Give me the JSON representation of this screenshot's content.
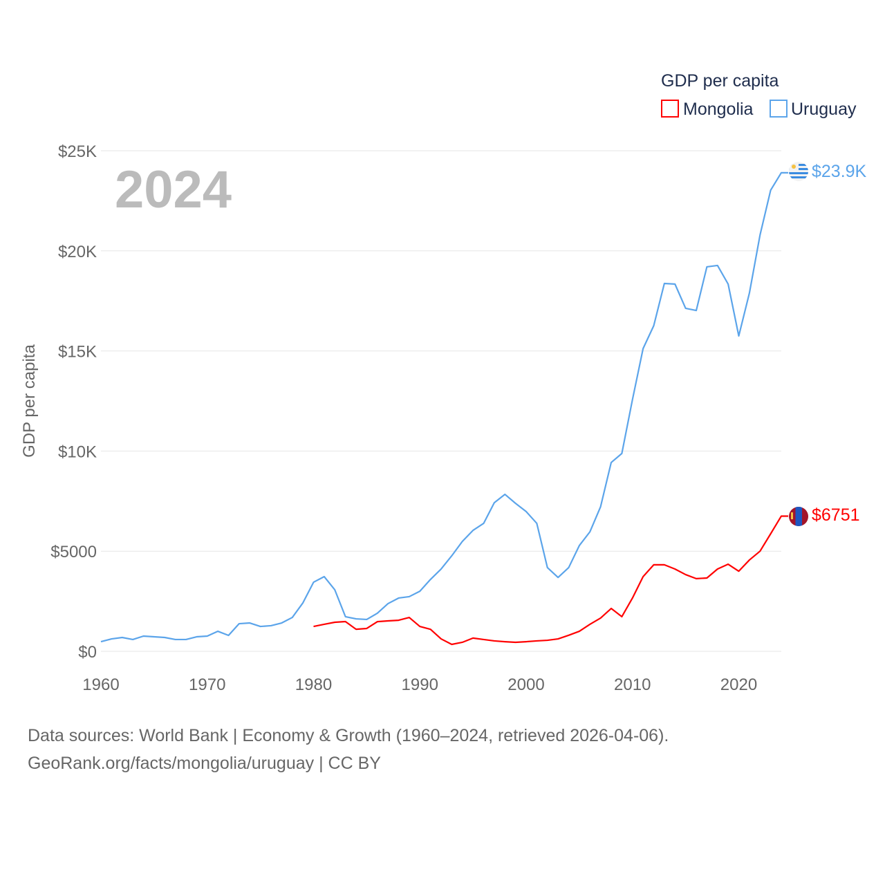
{
  "chart_data": {
    "type": "line",
    "title": "",
    "xlabel": "",
    "ylabel": "GDP per capita",
    "xlim": [
      1960,
      2024
    ],
    "ylim": [
      0,
      25000
    ],
    "grid": true,
    "x_ticks": [
      1960,
      1970,
      1980,
      1990,
      2000,
      2010,
      2020
    ],
    "x_tick_labels": [
      "1960",
      "1970",
      "1980",
      "1990",
      "2000",
      "2010",
      "2020"
    ],
    "y_ticks": [
      0,
      5000,
      10000,
      15000,
      20000,
      25000
    ],
    "y_tick_labels": [
      "$0",
      "$5000",
      "$10K",
      "$15K",
      "$20K",
      "$25K"
    ],
    "year_label": "2024",
    "legend": {
      "title": "GDP per capita",
      "placement": "top-right"
    },
    "series": [
      {
        "name": "Mongolia",
        "color": "#ff0000",
        "start_year": 1980,
        "end_label": "$6751",
        "flag": "mongolia-flag",
        "values": [
          1240,
          1350,
          1450,
          1485,
          1100,
          1140,
          1480,
          1520,
          1550,
          1690,
          1240,
          1100,
          620,
          345,
          450,
          660,
          590,
          520,
          480,
          450,
          480,
          520,
          550,
          620,
          800,
          1000,
          1350,
          1660,
          2140,
          1730,
          2660,
          3730,
          4320,
          4320,
          4110,
          3830,
          3630,
          3660,
          4110,
          4350,
          4000,
          4560,
          5000,
          5870,
          6751
        ]
      },
      {
        "name": "Uruguay",
        "color": "#5ba4ea",
        "start_year": 1960,
        "end_label": "$23.9K",
        "flag": "uruguay-flag",
        "values": [
          480,
          620,
          690,
          590,
          760,
          725,
          690,
          590,
          590,
          725,
          760,
          1000,
          795,
          1380,
          1415,
          1240,
          1280,
          1415,
          1690,
          2420,
          3450,
          3730,
          3070,
          1730,
          1620,
          1590,
          1900,
          2380,
          2660,
          2730,
          3000,
          3590,
          4110,
          4770,
          5490,
          6040,
          6390,
          7420,
          7840,
          7390,
          6980,
          6390,
          4180,
          3690,
          4180,
          5280,
          5970,
          7220,
          9430,
          9880,
          12570,
          15120,
          16260,
          18370,
          18340,
          17130,
          17020,
          19200,
          19270,
          18340,
          15750,
          17890,
          20790,
          23030,
          23900
        ]
      }
    ]
  },
  "footer": {
    "line1": "Data sources: World Bank | Economy & Growth (1960–2024, retrieved 2026-04-06).",
    "line2": "GeoRank.org/facts/mongolia/uruguay | CC BY"
  }
}
